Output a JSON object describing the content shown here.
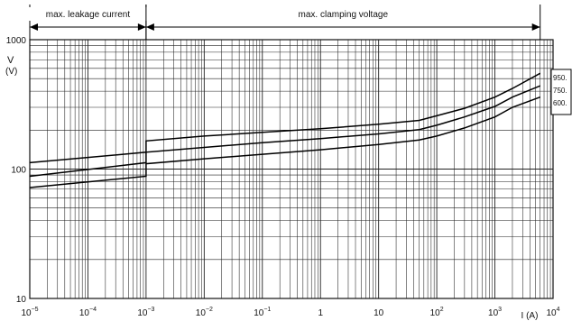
{
  "chart_data": {
    "type": "line",
    "x_scale": "log",
    "y_scale": "log",
    "xlim": [
      1e-05,
      10000
    ],
    "ylim": [
      10,
      1000
    ],
    "x_ticks": [
      {
        "value": 1e-05,
        "base": "10",
        "exp": "−5"
      },
      {
        "value": 0.0001,
        "base": "10",
        "exp": "−4"
      },
      {
        "value": 0.001,
        "base": "10",
        "exp": "−3"
      },
      {
        "value": 0.01,
        "base": "10",
        "exp": "−2"
      },
      {
        "value": 0.1,
        "base": "10",
        "exp": "−1"
      },
      {
        "value": 1,
        "base": "1",
        "exp": ""
      },
      {
        "value": 10,
        "base": "10",
        "exp": ""
      },
      {
        "value": 100,
        "base": "10",
        "exp": "2"
      },
      {
        "value": 1000,
        "base": "10",
        "exp": "3"
      },
      {
        "value": 10000,
        "base": "10",
        "exp": "4"
      }
    ],
    "y_ticks": [
      {
        "value": 10,
        "label": "10"
      },
      {
        "value": 100,
        "label": "100"
      },
      {
        "value": 1000,
        "label": "1000"
      }
    ],
    "xlabel": "I  (A)",
    "ylabel_line1": "V",
    "ylabel_line2": "(V)",
    "grid": true,
    "regions": [
      {
        "label": "max. leakage current",
        "from": 1e-05,
        "to": 0.001
      },
      {
        "label": "max. clamping voltage",
        "from": 0.001,
        "to": 6000
      }
    ],
    "series": [
      {
        "name": "950.",
        "points": [
          [
            1e-05,
            112
          ],
          [
            0.001,
            135
          ],
          [
            0.001,
            165
          ],
          [
            0.01,
            180
          ],
          [
            0.1,
            192
          ],
          [
            1,
            205
          ],
          [
            10,
            222
          ],
          [
            50,
            238
          ],
          [
            100,
            258
          ],
          [
            300,
            295
          ],
          [
            1000,
            360
          ],
          [
            2000,
            420
          ],
          [
            6000,
            550
          ]
        ]
      },
      {
        "name": "750.",
        "points": [
          [
            1e-05,
            88
          ],
          [
            0.001,
            112
          ],
          [
            0.001,
            135
          ],
          [
            0.01,
            147
          ],
          [
            0.1,
            160
          ],
          [
            1,
            172
          ],
          [
            10,
            187
          ],
          [
            50,
            202
          ],
          [
            100,
            218
          ],
          [
            300,
            253
          ],
          [
            1000,
            305
          ],
          [
            2000,
            360
          ],
          [
            6000,
            440
          ]
        ]
      },
      {
        "name": "600.",
        "points": [
          [
            1e-05,
            72
          ],
          [
            0.001,
            88
          ],
          [
            0.001,
            110
          ],
          [
            0.01,
            120
          ],
          [
            0.1,
            130
          ],
          [
            1,
            141
          ],
          [
            10,
            155
          ],
          [
            50,
            168
          ],
          [
            100,
            180
          ],
          [
            300,
            208
          ],
          [
            1000,
            253
          ],
          [
            2000,
            300
          ],
          [
            6000,
            360
          ]
        ]
      }
    ]
  }
}
